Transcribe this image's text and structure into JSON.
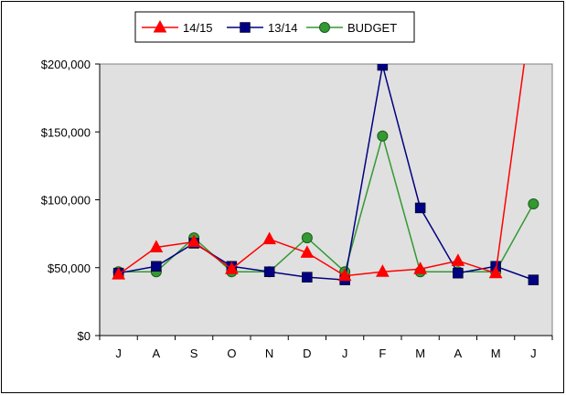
{
  "chart_data": {
    "type": "line",
    "categories": [
      "J",
      "A",
      "S",
      "O",
      "N",
      "D",
      "J",
      "F",
      "M",
      "A",
      "M",
      "J"
    ],
    "ylim": [
      0,
      200000
    ],
    "yticks": [
      0,
      50000,
      100000,
      150000,
      200000
    ],
    "ytick_labels": [
      "$0",
      "$50,000",
      "$100,000",
      "$150,000",
      "$200,000"
    ],
    "grid": false,
    "legend_position": "top",
    "series": [
      {
        "name": "14/15",
        "color": "#ff0000",
        "marker": "triangle",
        "values": [
          45000,
          65000,
          69000,
          49000,
          71000,
          61000,
          44000,
          47000,
          49000,
          55000,
          46000,
          250000
        ]
      },
      {
        "name": "13/14",
        "color": "#000080",
        "marker": "square",
        "values": [
          46000,
          51000,
          68000,
          51000,
          47000,
          43000,
          41000,
          199000,
          94000,
          46000,
          51000,
          41000
        ]
      },
      {
        "name": "BUDGET",
        "color": "#339933",
        "marker": "circle",
        "values": [
          47000,
          47000,
          72000,
          47000,
          47000,
          72000,
          47000,
          147000,
          47000,
          47000,
          47000,
          97000
        ]
      }
    ]
  },
  "colors": {
    "plot_background": "#e0e0e0"
  }
}
